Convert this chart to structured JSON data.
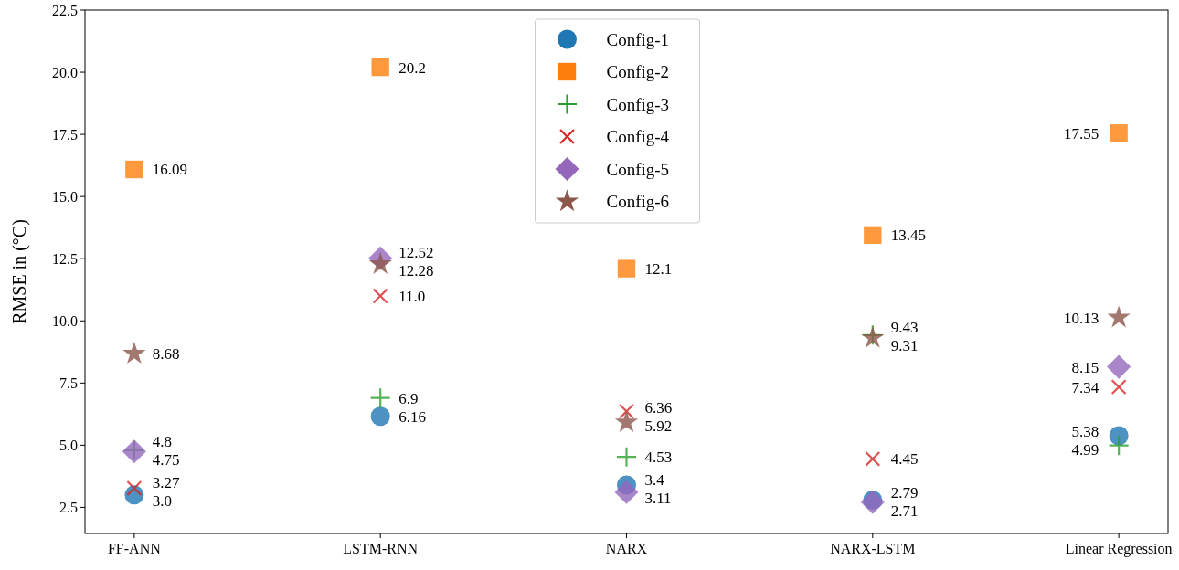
{
  "chart_data": {
    "type": "scatter",
    "ylabel": "RMSE in (°C)",
    "categories": [
      "FF-ANN",
      "LSTM-RNN",
      "NARX",
      "NARX-LSTM",
      "Linear Regression"
    ],
    "ylim": [
      1.45,
      22.5
    ],
    "yticks": [
      2.5,
      {
        "value": 5,
        "label": "5.0"
      },
      7.5,
      {
        "value": 10,
        "label": "10.0"
      },
      12.5,
      {
        "value": 15,
        "label": "15.0"
      },
      17.5,
      {
        "value": 20,
        "label": "20.0"
      },
      22.5
    ],
    "legend": "top",
    "grid": false,
    "series": [
      {
        "name": "Config-1",
        "color": "#1f77b4",
        "marker": "circle",
        "values": [
          3.0,
          6.16,
          3.4,
          2.79,
          5.38
        ],
        "value_labels": [
          "3.0",
          "6.16",
          "3.4",
          "2.79",
          "5.38"
        ]
      },
      {
        "name": "Config-2",
        "color": "#ff7f0e",
        "marker": "square",
        "values": [
          16.09,
          20.2,
          12.1,
          13.45,
          17.55
        ],
        "value_labels": [
          "16.09",
          "20.2",
          "12.1",
          "13.45",
          "17.55"
        ]
      },
      {
        "name": "Config-3",
        "color": "#2ca02c",
        "marker": "cross",
        "values": [
          4.8,
          6.9,
          4.53,
          9.43,
          4.99
        ],
        "value_labels": [
          "4.8",
          "6.9",
          "4.53",
          "9.43",
          "4.99"
        ]
      },
      {
        "name": "Config-4",
        "color": "#d62728",
        "marker": "x",
        "values": [
          3.27,
          11.0,
          6.36,
          4.45,
          7.34
        ],
        "value_labels": [
          "3.27",
          "11.0",
          "6.36",
          "4.45",
          "7.34"
        ]
      },
      {
        "name": "Config-5",
        "color": "#9467bd",
        "marker": "diamond",
        "values": [
          4.75,
          12.52,
          3.11,
          2.71,
          8.15
        ],
        "value_labels": [
          "4.75",
          "12.52",
          "3.11",
          "2.71",
          "8.15"
        ]
      },
      {
        "name": "Config-6",
        "color": "#8c564b",
        "marker": "star",
        "values": [
          8.68,
          12.28,
          5.92,
          9.31,
          10.13
        ],
        "value_labels": [
          "8.68",
          "12.28",
          "5.92",
          "9.31",
          "10.13"
        ]
      }
    ]
  }
}
